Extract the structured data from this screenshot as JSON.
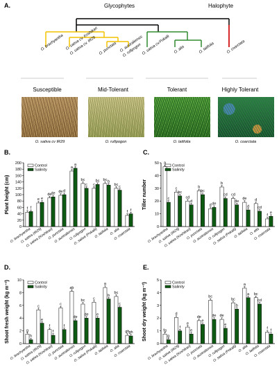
{
  "figure": {
    "panelA": {
      "letter": "A.",
      "glycophytes_label": "Glycophytes",
      "halophyte_label": "Halophyte",
      "species": [
        "O. brachyantha",
        "O. sativa cv. Koshikari",
        "O. sativa cv. IR29",
        "O. punctata",
        "O. australiensis",
        "O. rufipogon",
        "O. sativa cv.Pokalli",
        "O. alta",
        "O. latifolia",
        "O. coarctata"
      ],
      "categories": [
        "Susceptible",
        "Mid-Tolerant",
        "Tolerant",
        "Highly Tolerant"
      ],
      "photo_captions": [
        "O. sativa cv IR29",
        "O. rufipogon",
        "O. latifolia",
        "O. coarctata"
      ],
      "colors": {
        "yellow": "#f2c200",
        "green": "#2e8b2e",
        "red": "#d21010",
        "black": "#000000"
      }
    },
    "legend": {
      "control": "Control",
      "salinity": "Salinity"
    },
    "colors": {
      "control": "#ffffff",
      "salinity": "#0e5a12"
    }
  },
  "chart_data": [
    {
      "panel": "B.",
      "type": "bar",
      "ylabel": "Plant height (cm)",
      "ylim": [
        0,
        200
      ],
      "yticks": [
        0,
        20,
        40,
        60,
        80,
        100,
        120,
        140,
        160,
        180,
        200
      ],
      "categories": [
        "O. brachyantha",
        "O. sativa (IR29)",
        "O. sativa (Koshikari)",
        "O. punctata",
        "O. australiensis",
        "O. rufipogon",
        "O. sativa (Pokalli)",
        "O. latifolia",
        "O. alta",
        "O. coarctata"
      ],
      "series": [
        {
          "name": "Control",
          "values": [
            45,
            74,
            90,
            98,
            174,
            135,
            120,
            135,
            120,
            35
          ],
          "letters": [
            "f",
            "e",
            "de",
            "de",
            "a",
            "bc",
            "c",
            "bc",
            "bc",
            "f"
          ]
        },
        {
          "name": "Salinity",
          "values": [
            47,
            76,
            93,
            100,
            183,
            120,
            132,
            130,
            114,
            40
          ],
          "letters": [
            "f",
            "e",
            "de",
            "d",
            "a",
            "c",
            "bc",
            "b",
            "c",
            "f"
          ]
        }
      ]
    },
    {
      "panel": "C.",
      "type": "bar",
      "ylabel": "Tiller number",
      "ylim": [
        0,
        50
      ],
      "yticks": [
        0,
        10,
        20,
        30,
        40,
        50
      ],
      "categories": [
        "O. brachyantha",
        "O. sativa (IR29)",
        "O. sativa (Koshikari)",
        "O. punctata",
        "O. australiensis",
        "O. rufipogon",
        "O. sativa (Pokalli)",
        "O. latifolia",
        "O. alta",
        "O. coarctata"
      ],
      "series": [
        {
          "name": "Control",
          "values": [
            47,
            27,
            20,
            28,
            14,
            31,
            22,
            19,
            18,
            6
          ],
          "letters": [
            "a",
            "c",
            "cd",
            "b",
            "d",
            "b",
            "cd",
            "de",
            "d",
            "f"
          ]
        },
        {
          "name": "Salinity",
          "values": [
            19,
            24,
            17,
            25,
            15,
            22,
            17,
            13,
            12,
            8
          ],
          "letters": [
            "c",
            "bc",
            "d",
            "bc",
            "de",
            "cd",
            "de",
            "d",
            "cd",
            "e"
          ]
        }
      ]
    },
    {
      "panel": "D.",
      "type": "bar",
      "ylabel": "Shoot fresh weight (kg m⁻²)",
      "ylim": [
        0,
        10
      ],
      "yticks": [
        0,
        2,
        4,
        6,
        8,
        10
      ],
      "categories": [
        "O. brachyantha",
        "O. sativa (IR29)",
        "O. sativa (Koshikari)",
        "O. punctata",
        "O. australiensis",
        "O. rufipogon",
        "O. sativa (Pokalli)",
        "O. latifolia",
        "O. alta",
        "O. coarctata"
      ],
      "series": [
        {
          "name": "Control",
          "values": [
            1.5,
            5.3,
            2.2,
            5.6,
            8.2,
            6.2,
            6.5,
            8.8,
            7.4,
            1.3
          ],
          "letters": [
            "g",
            "c",
            "f",
            "c",
            "ab",
            "bc",
            "c",
            "a",
            "bc",
            "gh"
          ]
        },
        {
          "name": "Salinity",
          "values": [
            0.6,
            3.2,
            1.3,
            2.2,
            3.6,
            4.0,
            4.0,
            7.0,
            5.7,
            1.2
          ],
          "letters": [
            "h",
            "e",
            "f",
            "f",
            "de",
            "de",
            "e",
            "b",
            "c",
            "gh"
          ]
        }
      ]
    },
    {
      "panel": "E.",
      "type": "bar",
      "ylabel": "Shoot dry weight (kg m⁻²)",
      "ylim": [
        0,
        5
      ],
      "yticks": [
        0,
        1,
        2,
        3,
        4,
        5
      ],
      "categories": [
        "O. brachyantha",
        "O. sativa (IR29)",
        "O. sativa (Koshikari)",
        "O. punctata",
        "O. australiensis",
        "O. rufipogon",
        "O. sativa (Pokalli)",
        "O. alta",
        "O. latifolia",
        "O. coarctata"
      ],
      "series": [
        {
          "name": "Control",
          "values": [
            0.75,
            2.05,
            1.3,
            1.8,
            3.4,
            1.9,
            3.2,
            4.35,
            3.6,
            0.9
          ],
          "letters": [
            "fg",
            "d",
            "e",
            "de",
            "bc",
            "de",
            "bc",
            "a",
            "bc",
            "f"
          ]
        },
        {
          "name": "Salinity",
          "values": [
            0.3,
            1.0,
            0.75,
            1.5,
            1.9,
            1.2,
            2.7,
            3.6,
            3.1,
            0.75
          ],
          "letters": [
            "g",
            "f",
            "e",
            "e",
            "de",
            "e",
            "b",
            "a",
            "cd",
            "f"
          ]
        }
      ]
    }
  ]
}
